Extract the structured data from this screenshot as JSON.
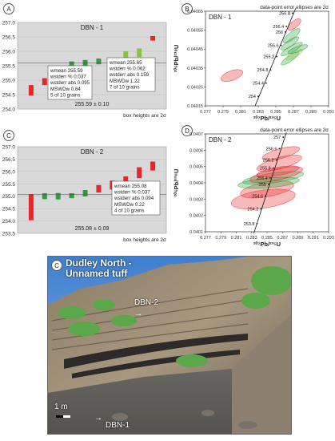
{
  "panels": {
    "A": {
      "label": "A",
      "title": "DBN - 1",
      "footnote": "box heights are 2σ",
      "summary": "255.59 ± 0.10",
      "stats_left": [
        "wmean 255.59",
        "wstderr % 0.037",
        "wstderr abs 0.095",
        "MSWDw 0.64",
        "5 of 10 grains"
      ],
      "stats_right": [
        "wmean 255.65",
        "wstderr % 0.062",
        "wstderr abs 0.159",
        "MSWDw 1.22",
        "7 of 10 grains"
      ]
    },
    "B": {
      "label": "B",
      "title": "DBN - 1",
      "header": "data-point error ellipses are 2σ",
      "ylabel": "²⁰⁶Pb/²³⁸U",
      "xlabel": "²⁰⁷Pb/²³⁵U"
    },
    "C": {
      "label": "C",
      "title": "DBN - 2",
      "footnote": "box heights are 2σ",
      "summary": "255.08 ± 0.09",
      "stats": [
        "wmean 255.08",
        "wstderr % 0.037",
        "wstderr abs 0.094",
        "MSWDw 0.22",
        "4 of 10 grains"
      ]
    },
    "D": {
      "label": "D",
      "title": "DBN - 2",
      "header": "data-point error ellipses are 2σ",
      "ylabel": "²⁰⁶Pb/²³⁸U",
      "xlabel": "²⁰⁷Pb/²³⁵U"
    },
    "photo": {
      "label": "C",
      "title_line1": "Dudley North -",
      "title_line2": "Unnamed tuff",
      "tag_upper": "DBN-2",
      "tag_lower": "DBN-1",
      "scale": "1 m"
    }
  },
  "chart_data": [
    {
      "id": "A",
      "type": "bar",
      "title": "DBN - 1",
      "ylim": [
        254.0,
        257.0
      ],
      "yticks": [
        254.0,
        254.5,
        255.0,
        255.5,
        256.0,
        256.5,
        257.0
      ],
      "boxes": [
        {
          "center": 254.65,
          "half": 0.18,
          "color": "#e8272a"
        },
        {
          "center": 254.95,
          "half": 0.12,
          "color": "#e8272a"
        },
        {
          "center": 255.42,
          "half": 0.08,
          "color": "#2e9e3e"
        },
        {
          "center": 255.55,
          "half": 0.1,
          "color": "#2e9e3e"
        },
        {
          "center": 255.6,
          "half": 0.1,
          "color": "#2e9e3e"
        },
        {
          "center": 255.65,
          "half": 0.1,
          "color": "#2e9e3e"
        },
        {
          "center": 255.67,
          "half": 0.1,
          "color": "#2e9e3e"
        },
        {
          "center": 255.85,
          "half": 0.15,
          "color": "#8ac43f"
        },
        {
          "center": 255.95,
          "half": 0.15,
          "color": "#8ac43f"
        },
        {
          "center": 256.45,
          "half": 0.08,
          "color": "#e8272a"
        }
      ],
      "wmean_line": 255.59
    },
    {
      "id": "B",
      "type": "scatter",
      "title": "DBN - 1",
      "xlim": [
        0.277,
        0.291
      ],
      "xticks": [
        0.277,
        0.279,
        0.281,
        0.283,
        0.285,
        0.287,
        0.289,
        0.291
      ],
      "ylim": [
        0.04015,
        0.04065
      ],
      "yticks": [
        0.04015,
        0.04025,
        0.04035,
        0.04045,
        0.04055,
        0.04065
      ],
      "concordia_labels": [
        {
          "age": "254",
          "x": 0.283,
          "y": 0.0402
        },
        {
          "age": "254.4",
          "x": 0.2839,
          "y": 0.04027
        },
        {
          "age": "254.8",
          "x": 0.2844,
          "y": 0.04034
        },
        {
          "age": "255.2",
          "x": 0.2851,
          "y": 0.04041
        },
        {
          "age": "255.6",
          "x": 0.2856,
          "y": 0.04047
        },
        {
          "age": "256",
          "x": 0.2861,
          "y": 0.04054
        },
        {
          "age": "256.4",
          "x": 0.2862,
          "y": 0.04057
        },
        {
          "age": "256.8",
          "x": 0.2869,
          "y": 0.04064
        }
      ],
      "ellipses": [
        {
          "cx": 0.28,
          "cy": 0.04031,
          "rx": 0.0013,
          "ry": 2.5e-05,
          "rot": -20,
          "color": "#e8272a"
        },
        {
          "cx": 0.2871,
          "cy": 0.04058,
          "rx": 0.0009,
          "ry": 1.8e-05,
          "rot": -40,
          "color": "#e8272a"
        },
        {
          "cx": 0.2868,
          "cy": 0.04052,
          "rx": 0.0012,
          "ry": 1.8e-05,
          "rot": -40,
          "color": "#2e9e3e"
        },
        {
          "cx": 0.2866,
          "cy": 0.04048,
          "rx": 0.0012,
          "ry": 1.6e-05,
          "rot": -35,
          "color": "#2e9e3e"
        },
        {
          "cx": 0.2868,
          "cy": 0.04045,
          "rx": 0.0014,
          "ry": 1.6e-05,
          "rot": -30,
          "color": "#2e9e3e"
        },
        {
          "cx": 0.2866,
          "cy": 0.0404,
          "rx": 0.0012,
          "ry": 1.5e-05,
          "rot": -35,
          "color": "#2e9e3e"
        },
        {
          "cx": 0.2871,
          "cy": 0.04042,
          "rx": 0.0011,
          "ry": 1.4e-05,
          "rot": -30,
          "color": "#8ac43f"
        },
        {
          "cx": 0.2875,
          "cy": 0.04045,
          "rx": 0.0012,
          "ry": 1.4e-05,
          "rot": -20,
          "color": "#2e9e3e"
        }
      ]
    },
    {
      "id": "C",
      "type": "bar",
      "title": "DBN - 2",
      "ylim": [
        253.5,
        257.0
      ],
      "yticks": [
        253.5,
        254.0,
        254.5,
        255.0,
        255.5,
        256.0,
        256.5,
        257.0
      ],
      "boxes": [
        {
          "center": 254.55,
          "half": 0.52,
          "color": "#e8272a"
        },
        {
          "center": 255.0,
          "half": 0.12,
          "color": "#2e9e3e"
        },
        {
          "center": 255.0,
          "half": 0.13,
          "color": "#2e9e3e"
        },
        {
          "center": 255.02,
          "half": 0.1,
          "color": "#2e9e3e"
        },
        {
          "center": 255.12,
          "half": 0.13,
          "color": "#2e9e3e"
        },
        {
          "center": 255.3,
          "half": 0.15,
          "color": "#e8272a"
        },
        {
          "center": 255.45,
          "half": 0.18,
          "color": "#e8272a"
        },
        {
          "center": 255.6,
          "half": 0.2,
          "color": "#e8272a"
        },
        {
          "center": 255.95,
          "half": 0.22,
          "color": "#e8272a"
        },
        {
          "center": 256.22,
          "half": 0.18,
          "color": "#e8272a"
        }
      ],
      "wmean_line": 255.08
    },
    {
      "id": "D",
      "type": "scatter",
      "title": "DBN - 2",
      "xlim": [
        0.277,
        0.293
      ],
      "xticks": [
        0.277,
        0.279,
        0.281,
        0.283,
        0.285,
        0.287,
        0.289,
        0.291,
        0.293
      ],
      "ylim": [
        0.0401,
        0.0407
      ],
      "yticks": [
        0.0401,
        0.0402,
        0.0403,
        0.0404,
        0.0405,
        0.0406,
        0.0407
      ],
      "concordia_labels": [
        {
          "age": "253.8",
          "x": 0.2837,
          "y": 0.04015
        },
        {
          "age": "254.2",
          "x": 0.2842,
          "y": 0.04024
        },
        {
          "age": "254.6",
          "x": 0.2848,
          "y": 0.04032
        },
        {
          "age": "255",
          "x": 0.2852,
          "y": 0.04039
        },
        {
          "age": "255.4",
          "x": 0.2854,
          "y": 0.04043
        },
        {
          "age": "255.8",
          "x": 0.2858,
          "y": 0.04049
        },
        {
          "age": "256.2",
          "x": 0.2862,
          "y": 0.04054
        },
        {
          "age": "256.6",
          "x": 0.2866,
          "y": 0.04061
        },
        {
          "age": "257",
          "x": 0.2871,
          "y": 0.04068
        }
      ],
      "ellipses": [
        {
          "cx": 0.2845,
          "cy": 0.0403,
          "rx": 0.0042,
          "ry": 5.5e-05,
          "rot": -8,
          "color": "#e8272a"
        },
        {
          "cx": 0.285,
          "cy": 0.04036,
          "rx": 0.0035,
          "ry": 4.5e-05,
          "rot": -10,
          "color": "#e8272a"
        },
        {
          "cx": 0.2852,
          "cy": 0.0404,
          "rx": 0.004,
          "ry": 3e-05,
          "rot": -5,
          "color": "#2e9e3e"
        },
        {
          "cx": 0.2858,
          "cy": 0.04043,
          "rx": 0.004,
          "ry": 3e-05,
          "rot": -8,
          "color": "#2e9e3e"
        },
        {
          "cx": 0.2862,
          "cy": 0.04045,
          "rx": 0.0035,
          "ry": 3.5e-05,
          "rot": -12,
          "color": "#e8272a"
        },
        {
          "cx": 0.2866,
          "cy": 0.04052,
          "rx": 0.003,
          "ry": 3.5e-05,
          "rot": -15,
          "color": "#e8272a"
        },
        {
          "cx": 0.2868,
          "cy": 0.04058,
          "rx": 0.0025,
          "ry": 3e-05,
          "rot": -15,
          "color": "#e8272a"
        },
        {
          "cx": 0.2864,
          "cy": 0.04047,
          "rx": 0.0028,
          "ry": 2.5e-05,
          "rot": -10,
          "color": "#e8272a"
        }
      ]
    }
  ]
}
